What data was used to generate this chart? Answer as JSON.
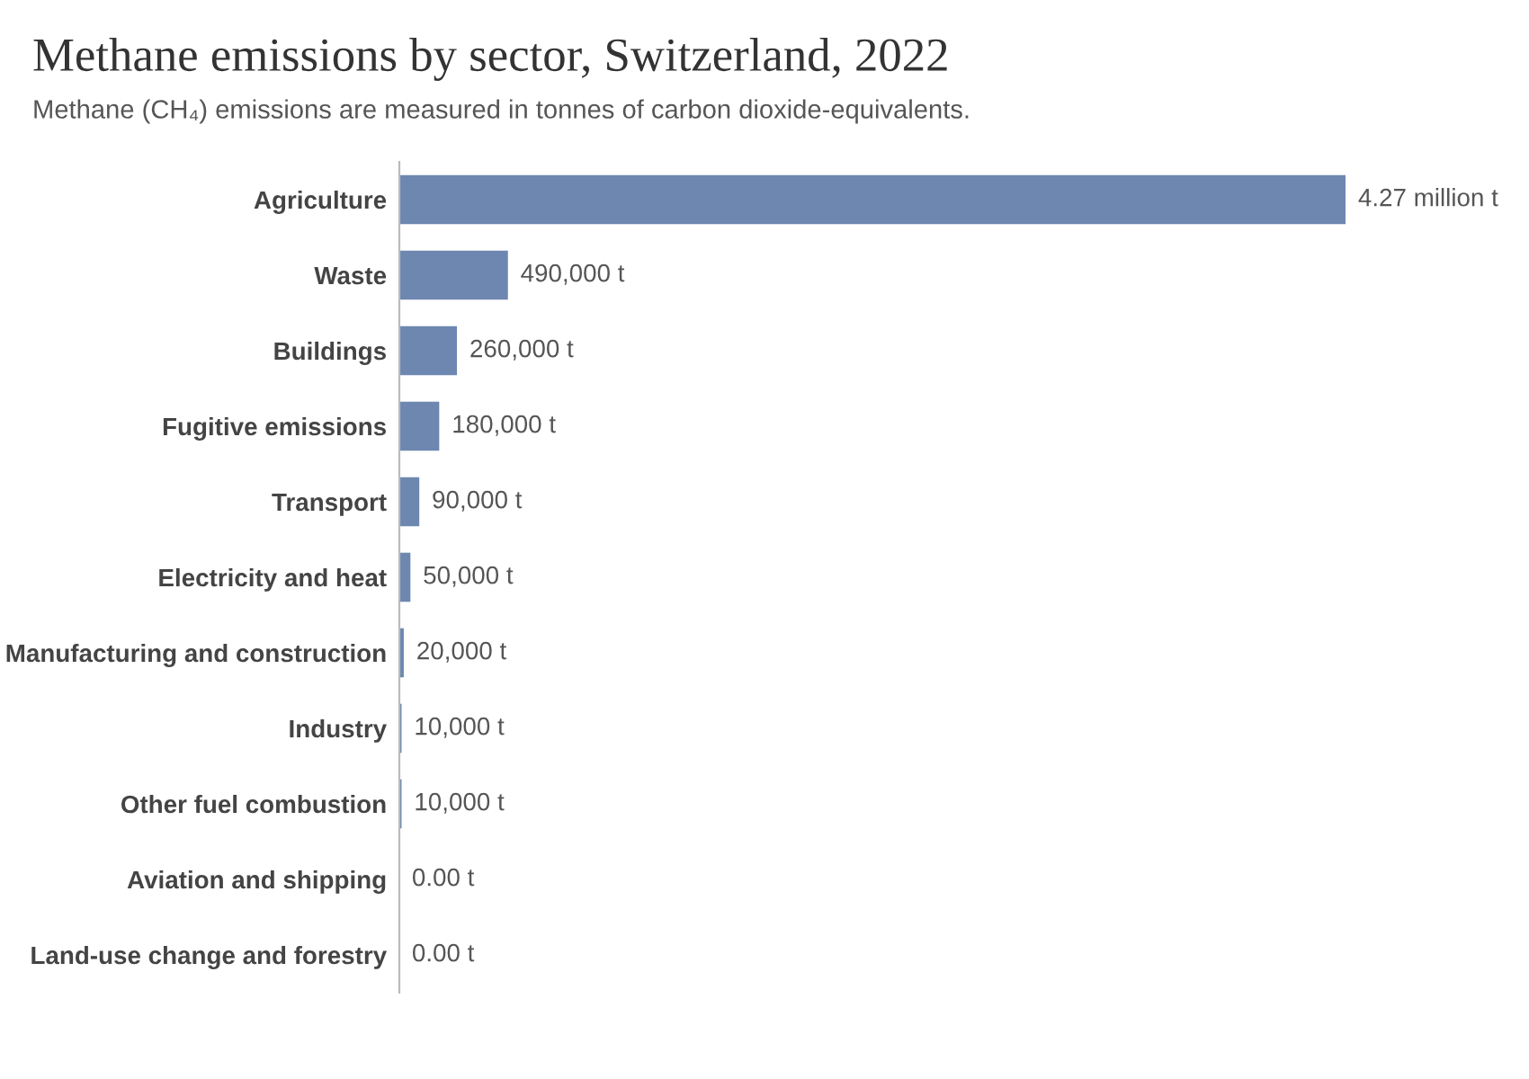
{
  "chart_data": {
    "type": "bar",
    "orientation": "horizontal",
    "title": "Methane emissions by sector, Switzerland, 2022",
    "subtitle": "Methane (CH₄) emissions are measured in tonnes of carbon dioxide-equivalents.",
    "categories": [
      "Agriculture",
      "Waste",
      "Buildings",
      "Fugitive emissions",
      "Transport",
      "Electricity and heat",
      "Manufacturing and construction",
      "Industry",
      "Other fuel combustion",
      "Aviation and shipping",
      "Land-use change and forestry"
    ],
    "values": [
      4270000,
      490000,
      260000,
      180000,
      90000,
      50000,
      20000,
      10000,
      10000,
      0,
      0
    ],
    "value_labels": [
      "4.27 million t",
      "490,000 t",
      "260,000 t",
      "180,000 t",
      "90,000 t",
      "50,000 t",
      "20,000 t",
      "10,000 t",
      "10,000 t",
      "0.00 t",
      "0.00 t"
    ],
    "color": "#6d87b0",
    "grid": false,
    "legend": false
  }
}
